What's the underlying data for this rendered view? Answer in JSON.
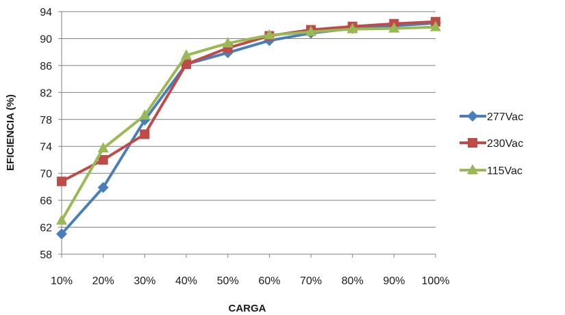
{
  "chart_data": {
    "type": "line",
    "xlabel": "CARGA",
    "ylabel": "EFICIENCIA (%)",
    "categories": [
      "10%",
      "20%",
      "30%",
      "40%",
      "50%",
      "60%",
      "70%",
      "80%",
      "90%",
      "100%"
    ],
    "ylim": [
      58,
      94
    ],
    "yticks": [
      58,
      62,
      66,
      70,
      74,
      78,
      82,
      86,
      90,
      94
    ],
    "grid": true,
    "legend_position": "right",
    "series": [
      {
        "name": "277Vac",
        "color": "#4A7EBB",
        "marker": "diamond",
        "values": [
          61.0,
          67.9,
          77.9,
          86.2,
          87.9,
          89.7,
          90.8,
          91.5,
          91.9,
          92.3
        ]
      },
      {
        "name": "230Vac",
        "color": "#BE4B48",
        "marker": "square",
        "values": [
          68.8,
          72.0,
          75.8,
          86.2,
          88.6,
          90.4,
          91.3,
          91.8,
          92.2,
          92.5
        ]
      },
      {
        "name": "115Vac",
        "color": "#98B954",
        "marker": "triangle",
        "values": [
          63.0,
          73.7,
          78.6,
          87.5,
          89.3,
          90.5,
          91.0,
          91.4,
          91.5,
          91.7
        ]
      }
    ]
  }
}
